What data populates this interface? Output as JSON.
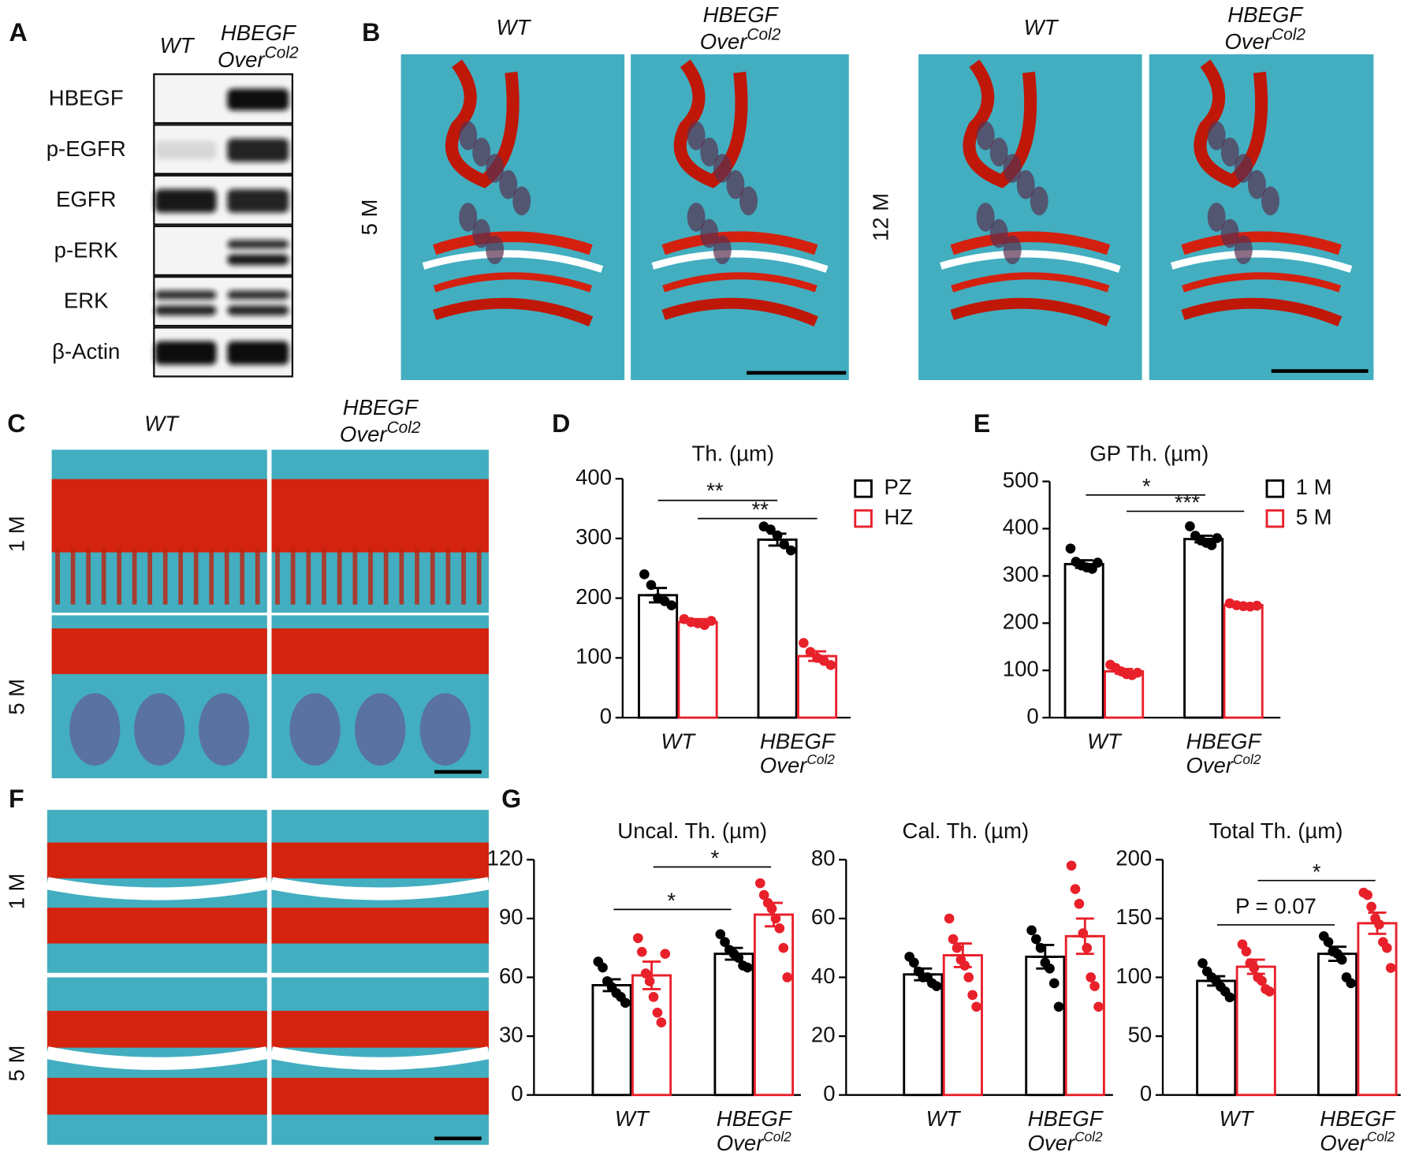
{
  "panels": {
    "a": "A",
    "b": "B",
    "c": "C",
    "d": "D",
    "e": "E",
    "f": "F",
    "g": "G"
  },
  "genotype": {
    "wt": "WT",
    "hbegf": "HBEGF",
    "over": "Over",
    "col2": "Col2"
  },
  "blot": {
    "proteins": [
      "HBEGF",
      "p-EGFR",
      "EGFR",
      "p-ERK",
      "ERK",
      "β-Actin"
    ]
  },
  "ages": {
    "m1": "1 M",
    "m5": "5 M",
    "m12": "12 M"
  },
  "chart_data": [
    {
      "type": "bar",
      "title": "Th. (µm)",
      "categories": [
        [
          "WT"
        ],
        [
          "HBEGF",
          "Over",
          "Col2"
        ]
      ],
      "series": [
        {
          "name": "PZ",
          "color": "#000000",
          "values": [
            205,
            298
          ],
          "errors": [
            12,
            10
          ],
          "points": [
            [
              240,
              222,
              200,
              195,
              188
            ],
            [
              320,
              315,
              305,
              290,
              280
            ]
          ]
        },
        {
          "name": "HZ",
          "color": "#e8202a",
          "values": [
            160,
            103
          ],
          "errors": [
            5,
            8
          ],
          "points": [
            [
              165,
              160,
              158,
              155,
              162
            ],
            [
              125,
              110,
              100,
              95,
              88
            ]
          ]
        }
      ],
      "ylim": [
        0,
        400
      ],
      "yticks": [
        0,
        100,
        200,
        300,
        400
      ],
      "annotations": [
        "**",
        "**"
      ]
    },
    {
      "type": "bar",
      "title": "GP Th. (µm)",
      "categories": [
        [
          "WT"
        ],
        [
          "HBEGF",
          "Over",
          "Col2"
        ]
      ],
      "series": [
        {
          "name": "1 M",
          "color": "#000000",
          "values": [
            325,
            378
          ],
          "errors": [
            8,
            7
          ],
          "points": [
            [
              358,
              330,
              322,
              318,
              315,
              328
            ],
            [
              405,
              385,
              375,
              370,
              365,
              380
            ]
          ]
        },
        {
          "name": "5 M",
          "color": "#e8202a",
          "values": [
            98,
            238
          ],
          "errors": [
            5,
            3
          ],
          "points": [
            [
              112,
              105,
              98,
              92,
              90,
              95
            ],
            [
              242,
              238,
              236,
              235,
              237
            ]
          ]
        }
      ],
      "ylim": [
        0,
        500
      ],
      "yticks": [
        0,
        100,
        200,
        300,
        400,
        500
      ],
      "annotations": [
        "*",
        "***"
      ]
    },
    {
      "type": "bar",
      "title": "Uncal. Th. (µm)",
      "categories": [
        [
          "WT"
        ],
        [
          "HBEGF",
          "Over",
          "Col2"
        ]
      ],
      "series": [
        {
          "color": "#000000",
          "values": [
            56,
            72
          ],
          "errors": [
            3,
            3
          ],
          "points": [
            [
              68,
              65,
              58,
              55,
              52,
              50,
              47
            ],
            [
              82,
              78,
              74,
              72,
              70,
              66,
              65
            ]
          ]
        },
        {
          "color": "#e8202a",
          "values": [
            61,
            92
          ],
          "errors": [
            7,
            6
          ],
          "points": [
            [
              80,
              73,
              62,
              58,
              50,
              42,
              37,
              72
            ],
            [
              108,
              102,
              98,
              95,
              90,
              85,
              75,
              60
            ]
          ]
        }
      ],
      "ylim": [
        0,
        120
      ],
      "yticks": [
        0,
        30,
        60,
        90,
        120
      ],
      "annotations": [
        "*",
        "*"
      ]
    },
    {
      "type": "bar",
      "title": "Cal. Th. (µm)",
      "categories": [
        [
          "WT"
        ],
        [
          "HBEGF",
          "Over",
          "Col2"
        ]
      ],
      "series": [
        {
          "color": "#000000",
          "values": [
            41,
            47
          ],
          "errors": [
            2,
            4
          ],
          "points": [
            [
              47,
              45,
              42,
              40,
              40,
              38,
              37
            ],
            [
              56,
              53,
              50,
              45,
              43,
              38,
              30
            ]
          ]
        },
        {
          "color": "#e8202a",
          "values": [
            47.5,
            54
          ],
          "errors": [
            4,
            6
          ],
          "points": [
            [
              60,
              53,
              50,
              46,
              44,
              40,
              34,
              30
            ],
            [
              78,
              70,
              65,
              55,
              50,
              40,
              37,
              30
            ]
          ]
        }
      ],
      "ylim": [
        0,
        80
      ],
      "yticks": [
        0,
        20,
        40,
        60,
        80
      ],
      "annotations": []
    },
    {
      "type": "bar",
      "title": "Total Th. (µm)",
      "categories": [
        [
          "WT"
        ],
        [
          "HBEGF",
          "Over",
          "Col2"
        ]
      ],
      "series": [
        {
          "color": "#000000",
          "values": [
            97,
            120
          ],
          "errors": [
            4,
            6
          ],
          "points": [
            [
              112,
              105,
              100,
              97,
              92,
              88,
              83
            ],
            [
              135,
              130,
              122,
              120,
              115,
              100,
              95
            ]
          ]
        },
        {
          "color": "#e8202a",
          "values": [
            109,
            146
          ],
          "errors": [
            6,
            9
          ],
          "points": [
            [
              128,
              122,
              112,
              108,
              100,
              97,
              90,
              88
            ],
            [
              172,
              170,
              160,
              150,
              145,
              130,
              125,
              108
            ]
          ]
        }
      ],
      "ylim": [
        0,
        200
      ],
      "yticks": [
        0,
        50,
        100,
        150,
        200
      ],
      "annotations": [
        "P = 0.07",
        "*"
      ]
    }
  ]
}
